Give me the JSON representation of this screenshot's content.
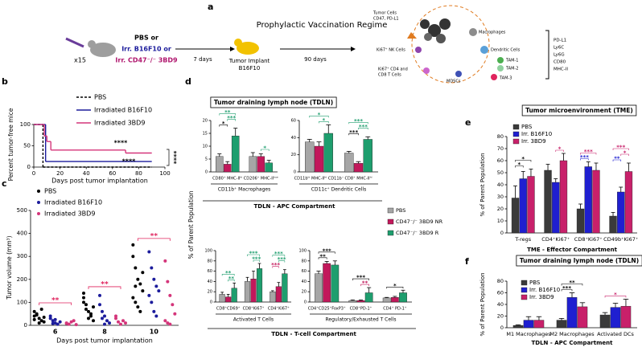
{
  "diagram": {
    "panel": "a",
    "title": "Prophylactic Vaccination Regime",
    "dose": "x15",
    "treatment": [
      "PBS or",
      "Irr. B16F10 or",
      "Irr. CD47⁻/⁻ 3BD9"
    ],
    "steps": [
      "7 days",
      "90 days"
    ],
    "implant": [
      "Tumor Implant",
      "B16F10"
    ],
    "tme_labels": [
      "Tumor Cells",
      "CD47, PD-L1",
      "Macrophages",
      "Dendritic Cells",
      "Ki67⁺ NK Cells",
      "TAM-1",
      "TAM-2",
      "TAM-3",
      "Ki67⁺ CD4 and",
      "CD8 T Cells",
      "MDSCs"
    ],
    "markers": [
      "PD-L1",
      "Ly6C",
      "Ly6G",
      "CD80",
      "MHC-II"
    ]
  },
  "chart_data": [
    {
      "type": "survival",
      "panel": "b",
      "ylabel": "Percent tumor-free mice",
      "xlabel": "Days post tumor implantation",
      "xlim": [
        0,
        100
      ],
      "xticks": [
        0,
        20,
        40,
        60,
        80,
        100
      ],
      "ylim": [
        0,
        100
      ],
      "yticks": [
        0,
        50,
        100
      ],
      "series": [
        {
          "name": "PBS",
          "color": "#000000",
          "dashed": true,
          "x": [
            0,
            7,
            90
          ],
          "values": [
            100,
            0,
            0
          ]
        },
        {
          "name": "Irradiated B16F10",
          "color": "#1c1c9c",
          "dashed": false,
          "x": [
            0,
            9,
            90
          ],
          "values": [
            100,
            13,
            13
          ]
        },
        {
          "name": "Irradiated 3BD9",
          "color": "#d4357a",
          "dashed": false,
          "x": [
            0,
            8,
            10,
            13,
            70,
            90
          ],
          "values": [
            100,
            73,
            60,
            40,
            33,
            33
          ]
        }
      ],
      "annotations": [
        "****",
        "****",
        "****"
      ]
    },
    {
      "type": "strip",
      "panel": "c",
      "ylabel": "Tumor volume (mm³)",
      "xlabel": "Days post tumor implantation",
      "categories": [
        "6",
        "8",
        "10"
      ],
      "ylim": [
        0,
        500
      ],
      "yticks": [
        0,
        100,
        200,
        300,
        400,
        500
      ],
      "series": [
        {
          "name": "PBS",
          "color": "#000000",
          "values": [
            [
              60,
              45,
              30,
              20,
              15,
              40,
              50,
              10,
              70,
              35,
              25
            ],
            [
              120,
              90,
              60,
              40,
              80,
              100,
              70,
              30,
              50,
              20,
              140
            ],
            [
              350,
              250,
              200,
              180,
              150,
              120,
              100,
              80,
              60,
              230,
              300,
              170
            ]
          ]
        },
        {
          "name": "Irradiated B16F10",
          "color": "#1c1c9c",
          "values": [
            [
              30,
              20,
              10,
              5,
              15,
              40,
              8,
              25
            ],
            [
              130,
              60,
              40,
              20,
              10,
              90,
              30,
              5
            ],
            [
              320,
              250,
              200,
              170,
              150,
              130,
              100,
              60,
              40
            ]
          ]
        },
        {
          "name": "Irradiated 3BD9",
          "color": "#d4357a",
          "values": [
            [
              10,
              5,
              15,
              20,
              3,
              8
            ],
            [
              40,
              15,
              5,
              20,
              10,
              30
            ],
            [
              280,
              190,
              130,
              90,
              50,
              20,
              10,
              5
            ]
          ]
        }
      ],
      "annotations": [
        {
          "category": 0,
          "from": 0,
          "to": 2,
          "text": "**",
          "color": "#e0245e"
        },
        {
          "category": 1,
          "from": 0,
          "to": 2,
          "text": "**",
          "color": "#e0245e"
        },
        {
          "category": 2,
          "from": 0,
          "to": 2,
          "text": "**",
          "color": "#e0245e"
        }
      ]
    },
    {
      "type": "bar-panels",
      "panel": "d",
      "title": "Tumor draining lymph node (TDLN)",
      "ylabel": "% of Parent Population",
      "series": [
        {
          "name": "PBS",
          "color": "#a6a6a6"
        },
        {
          "name": "CD47⁻/⁻ 3BD9 NR",
          "color": "#c2185b"
        },
        {
          "name": "CD47⁻/⁻ 3BD9 R",
          "color": "#1e9e6e"
        }
      ],
      "compartments": [
        {
          "label": "TDLN - APC Compartment",
          "subplots": [
            {
              "subtitle": "CD11b⁺ Macrophages",
              "categories": [
                "CD80⁺ MHC-IIʰⁱ",
                "CD206⁺ MHC-IIˡᵒʷ"
              ],
              "ylim": [
                0,
                20
              ],
              "yticks": [
                0,
                5,
                10,
                15,
                20
              ],
              "values": [
                [
                  6,
                  6
                ],
                [
                  3,
                  6
                ],
                [
                  14,
                  3.5
                ]
              ],
              "errors": [
                [
                  1,
                  1.5
                ],
                [
                  1,
                  1
                ],
                [
                  3,
                  1
                ]
              ],
              "annotations": [
                {
                  "category": 0,
                  "from": 0,
                  "to": 1,
                  "text": "*",
                  "color": "#000000"
                },
                {
                  "category": 0,
                  "from": 1,
                  "to": 2,
                  "text": "***",
                  "color": "#1e9e6e"
                },
                {
                  "category": 0,
                  "from": 0,
                  "to": 2,
                  "text": "**",
                  "color": "#1e9e6e"
                },
                {
                  "category": 1,
                  "from": 1,
                  "to": 2,
                  "text": "*",
                  "color": "#1e9e6e"
                }
              ]
            },
            {
              "subtitle": "CD11c⁺ Dendritic Cells",
              "categories": [
                "CD11bʰⁱ MHC-IIʰⁱ CD11b⁻",
                "CD8⁺ MHC-IIʰⁱ"
              ],
              "ylim": [
                0,
                60
              ],
              "yticks": [
                0,
                20,
                40,
                60
              ],
              "values": [
                [
                  35,
                  22
                ],
                [
                  30,
                  10
                ],
                [
                  45,
                  38
                ]
              ],
              "errors": [
                [
                  3,
                  2
                ],
                [
                  5,
                  2
                ],
                [
                  10,
                  3
                ]
              ],
              "annotations": [
                {
                  "category": 0,
                  "from": 1,
                  "to": 2,
                  "text": "*",
                  "color": "#1e9e6e"
                },
                {
                  "category": 0,
                  "from": 0,
                  "to": 2,
                  "text": "*",
                  "color": "#1e9e6e"
                },
                {
                  "category": 1,
                  "from": 0,
                  "to": 1,
                  "text": "***",
                  "color": "#000000"
                },
                {
                  "category": 1,
                  "from": 1,
                  "to": 2,
                  "text": "***",
                  "color": "#1e9e6e"
                },
                {
                  "category": 1,
                  "from": 0,
                  "to": 2,
                  "text": "***",
                  "color": "#1e9e6e"
                }
              ]
            }
          ]
        },
        {
          "label": "TDLN - T-cell Compartment",
          "subplots": [
            {
              "subtitle": "Activated T Cells",
              "categories": [
                "CD8⁺CD69⁺",
                "CD8⁺Ki67⁺",
                "CD4⁺Ki67⁺"
              ],
              "ylim": [
                0,
                100
              ],
              "yticks": [
                0,
                20,
                40,
                60,
                80,
                100
              ],
              "values": [
                [
                  15,
                  40,
                  20
                ],
                [
                  10,
                  45,
                  30
                ],
                [
                  27,
                  65,
                  55
                ]
              ],
              "errors": [
                [
                  4,
                  8,
                  2
                ],
                [
                  5,
                  15,
                  8
                ],
                [
                  10,
                  10,
                  8
                ]
              ],
              "annotations": [
                {
                  "category": 0,
                  "from": 1,
                  "to": 2,
                  "text": "**",
                  "color": "#1e9e6e"
                },
                {
                  "category": 0,
                  "from": 0,
                  "to": 2,
                  "text": "**",
                  "color": "#1e9e6e"
                },
                {
                  "category": 1,
                  "from": 1,
                  "to": 2,
                  "text": "***",
                  "color": "#1e9e6e"
                },
                {
                  "category": 1,
                  "from": 0,
                  "to": 2,
                  "text": "***",
                  "color": "#1e9e6e"
                },
                {
                  "category": 2,
                  "from": 0,
                  "to": 1,
                  "text": "***",
                  "color": "#c2185b"
                },
                {
                  "category": 2,
                  "from": 1,
                  "to": 2,
                  "text": "***",
                  "color": "#1e9e6e"
                },
                {
                  "category": 2,
                  "from": 0,
                  "to": 2,
                  "text": "***",
                  "color": "#1e9e6e"
                }
              ]
            },
            {
              "subtitle": "Regulatory/Exhausted T Cells",
              "categories": [
                "CD4⁺CD25⁺FoxP3⁺",
                "CD8⁺PD-1⁺",
                "CD4⁺ PD-1⁺"
              ],
              "ylim": [
                0,
                100
              ],
              "yticks": [
                0,
                20,
                40,
                60,
                80,
                100
              ],
              "values": [
                [
                  55,
                  3,
                  8
                ],
                [
                  75,
                  3,
                  9
                ],
                [
                  72,
                  18,
                  18
                ]
              ],
              "errors": [
                [
                  5,
                  1,
                  1
                ],
                [
                  4,
                  1,
                  2
                ],
                [
                  8,
                  10,
                  5
                ]
              ],
              "annotations": [
                {
                  "category": 0,
                  "from": 0,
                  "to": 1,
                  "text": "**",
                  "color": "#000000"
                },
                {
                  "category": 0,
                  "from": 0,
                  "to": 2,
                  "text": "***",
                  "color": "#000000"
                },
                {
                  "category": 1,
                  "from": 1,
                  "to": 2,
                  "text": "**",
                  "color": "#c2185b"
                },
                {
                  "category": 1,
                  "from": 0,
                  "to": 2,
                  "text": "***",
                  "color": "#000000"
                },
                {
                  "category": 2,
                  "from": 0,
                  "to": 2,
                  "text": "*",
                  "color": "#000000"
                }
              ]
            }
          ]
        }
      ]
    },
    {
      "type": "bar",
      "panel": "e",
      "title": "Tumor microenvironment (TME)",
      "ylabel": "% of Parent Population",
      "xlabel": "TME - Effector Compartment",
      "categories": [
        "T-regs",
        "CD4⁺Ki67⁺",
        "CD8⁺Ki67⁺",
        "CD49b⁺Ki67⁺"
      ],
      "ylim": [
        0,
        80
      ],
      "yticks": [
        0,
        10,
        20,
        30,
        40,
        50,
        60,
        70,
        80
      ],
      "series": [
        {
          "name": "PBS",
          "color": "#3a3a3a",
          "values": [
            29,
            52,
            20,
            14
          ],
          "errors": [
            10,
            5,
            4,
            3
          ]
        },
        {
          "name": "Irr. B16F10",
          "color": "#1f1fd0",
          "values": [
            45,
            42,
            55,
            34
          ],
          "errors": [
            6,
            3,
            4,
            4
          ]
        },
        {
          "name": "Irr. 3BD9",
          "color": "#c8206a",
          "values": [
            47,
            60,
            52,
            51
          ],
          "errors": [
            6,
            6,
            6,
            7
          ]
        }
      ],
      "annotations": [
        {
          "category": 0,
          "from": 0,
          "to": 1,
          "text": "*",
          "color": "#000000"
        },
        {
          "category": 0,
          "from": 0,
          "to": 2,
          "text": "*",
          "color": "#000000"
        },
        {
          "category": 1,
          "from": 1,
          "to": 2,
          "text": "*",
          "color": "#c8206a"
        },
        {
          "category": 2,
          "from": 0,
          "to": 1,
          "text": "***",
          "color": "#1f1fd0"
        },
        {
          "category": 2,
          "from": 0,
          "to": 2,
          "text": "***",
          "color": "#c8206a"
        },
        {
          "category": 3,
          "from": 0,
          "to": 1,
          "text": "**",
          "color": "#1f1fd0"
        },
        {
          "category": 3,
          "from": 1,
          "to": 2,
          "text": "*",
          "color": "#c8206a"
        },
        {
          "category": 3,
          "from": 0,
          "to": 2,
          "text": "***",
          "color": "#c8206a"
        }
      ]
    },
    {
      "type": "bar",
      "panel": "f",
      "title": "Tumor draining lymph node (TDLN)",
      "ylabel": "% of Parent Population",
      "xlabel": "TDLN - APC Compartment",
      "categories": [
        "M1 Macrophages",
        "M2 Macrophages",
        "Activated DCs"
      ],
      "ylim": [
        0,
        80
      ],
      "yticks": [
        0,
        20,
        40,
        60,
        80
      ],
      "series": [
        {
          "name": "PBS",
          "color": "#3a3a3a",
          "values": [
            4,
            13,
            22
          ],
          "errors": [
            1,
            3,
            4
          ]
        },
        {
          "name": "Irr. B16F10",
          "color": "#1f1fd0",
          "values": [
            13,
            52,
            35
          ],
          "errors": [
            6,
            8,
            7
          ]
        },
        {
          "name": "Irr. 3BD9",
          "color": "#c8206a",
          "values": [
            13,
            36,
            37
          ],
          "errors": [
            6,
            7,
            12
          ]
        }
      ],
      "annotations": [
        {
          "category": 1,
          "from": 0,
          "to": 1,
          "text": "***",
          "color": "#000000"
        },
        {
          "category": 1,
          "from": 0,
          "to": 2,
          "text": "**",
          "color": "#000000"
        },
        {
          "category": 2,
          "from": 0,
          "to": 2,
          "text": "*",
          "color": "#c8206a"
        }
      ]
    }
  ]
}
